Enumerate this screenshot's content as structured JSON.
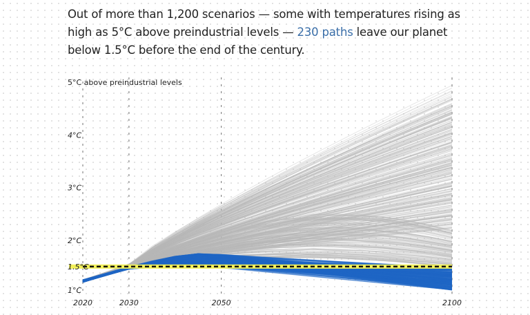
{
  "intro": {
    "before": "Out of more than 1,200 scenarios — some with temperatures rising as high as 5°C above preindustrial levels — ",
    "highlight": "230 paths",
    "after": " leave our planet below 1.5°C before the end of the century."
  },
  "chart_data": {
    "type": "line",
    "title": "",
    "ylabel": "5°C above preindustrial levels",
    "xlim": [
      2020,
      2100
    ],
    "ylim": [
      1,
      5
    ],
    "x_ticks": [
      "2020",
      "2030",
      "2050",
      "2100"
    ],
    "y_ticks": [
      {
        "value": 1,
        "label": "1°C"
      },
      {
        "value": 1.5,
        "label": "1.5°C"
      },
      {
        "value": 2,
        "label": "2°C"
      },
      {
        "value": 3,
        "label": "3°C"
      },
      {
        "value": 4,
        "label": "4°C"
      },
      {
        "value": 5,
        "label": "5°C"
      }
    ],
    "reference_line": {
      "value": 1.5,
      "style": "dashed black on yellow"
    },
    "series": [
      {
        "group": "above 1.5°C in 2100",
        "color": "#b8b8b8",
        "x": [
          2020,
          2030,
          2050,
          2100
        ],
        "range_min": [
          1.2,
          1.45,
          1.6,
          1.5
        ],
        "range_max": [
          1.25,
          1.55,
          2.6,
          5.0
        ]
      },
      {
        "group": "below 1.5°C in 2100",
        "color": "#1f66c4",
        "x": [
          2020,
          2030,
          2045,
          2050,
          2100
        ],
        "range_min": [
          1.2,
          1.45,
          1.5,
          1.48,
          1.05
        ],
        "range_max": [
          1.25,
          1.5,
          1.75,
          1.75,
          1.5
        ]
      }
    ],
    "grid": false,
    "colors": {
      "gray": "#b8b8b8",
      "blue": "#1f66c4",
      "reference_yellow": "#f2f05a"
    }
  }
}
